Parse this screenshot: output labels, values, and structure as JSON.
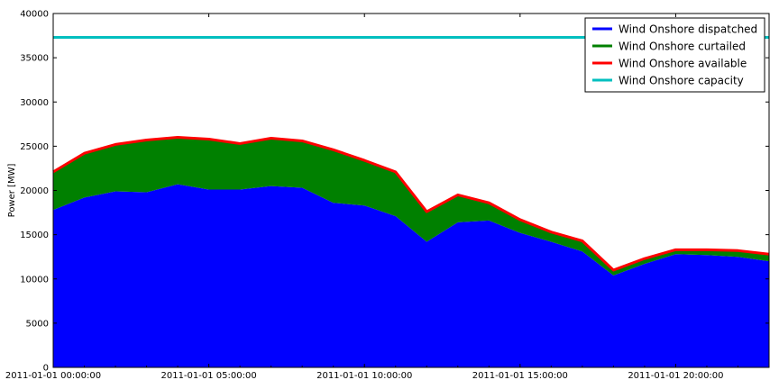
{
  "chart_data": {
    "type": "area",
    "title": "",
    "xlabel": "",
    "ylabel": "Power [MW]",
    "ylim": [
      0,
      40000
    ],
    "yticks": [
      0,
      5000,
      10000,
      15000,
      20000,
      25000,
      30000,
      35000,
      40000
    ],
    "xlim": [
      "2011-01-01 00:00:00",
      "2011-01-01 23:00:00"
    ],
    "xticks": [
      "2011-01-01 00:00:00",
      "2011-01-01 05:00:00",
      "2011-01-01 10:00:00",
      "2011-01-01 15:00:00",
      "2011-01-01 20:00:00"
    ],
    "x": [
      "2011-01-01 00:00:00",
      "2011-01-01 01:00:00",
      "2011-01-01 02:00:00",
      "2011-01-01 03:00:00",
      "2011-01-01 04:00:00",
      "2011-01-01 05:00:00",
      "2011-01-01 06:00:00",
      "2011-01-01 07:00:00",
      "2011-01-01 08:00:00",
      "2011-01-01 09:00:00",
      "2011-01-01 10:00:00",
      "2011-01-01 11:00:00",
      "2011-01-01 12:00:00",
      "2011-01-01 13:00:00",
      "2011-01-01 14:00:00",
      "2011-01-01 15:00:00",
      "2011-01-01 16:00:00",
      "2011-01-01 17:00:00",
      "2011-01-01 18:00:00",
      "2011-01-01 19:00:00",
      "2011-01-01 20:00:00",
      "2011-01-01 21:00:00",
      "2011-01-01 22:00:00",
      "2011-01-01 23:00:00"
    ],
    "legend_position": "top-right",
    "grid": false,
    "series": [
      {
        "name": "Wind Onshore dispatched",
        "color": "#0000ff",
        "values": [
          17800,
          19200,
          19900,
          19800,
          20700,
          20100,
          20100,
          20500,
          20300,
          18600,
          18300,
          17100,
          14200,
          16400,
          16600,
          15200,
          14200,
          13100,
          10400,
          11700,
          12800,
          12700,
          12500,
          12000
        ]
      },
      {
        "name": "Wind Onshore curtailed",
        "color": "#008000",
        "values": [
          4300,
          5000,
          5300,
          5900,
          5300,
          5700,
          5200,
          5400,
          5300,
          6000,
          5100,
          5000,
          3400,
          3100,
          2000,
          1500,
          1100,
          1200,
          600,
          600,
          500,
          600,
          700,
          800
        ]
      },
      {
        "name": "Wind Onshore available",
        "color": "#ff0000",
        "values": [
          22100,
          24200,
          25200,
          25700,
          26000,
          25800,
          25300,
          25900,
          25600,
          24600,
          23400,
          22100,
          17600,
          19500,
          18600,
          16700,
          15300,
          14300,
          11000,
          12300,
          13300,
          13300,
          13200,
          12800
        ]
      },
      {
        "name": "Wind Onshore capacity",
        "color": "#00bfbf",
        "values": [
          37300,
          37300,
          37300,
          37300,
          37300,
          37300,
          37300,
          37300,
          37300,
          37300,
          37300,
          37300,
          37300,
          37300,
          37300,
          37300,
          37300,
          37300,
          37300,
          37300,
          37300,
          37300,
          37300,
          37300
        ]
      }
    ]
  }
}
